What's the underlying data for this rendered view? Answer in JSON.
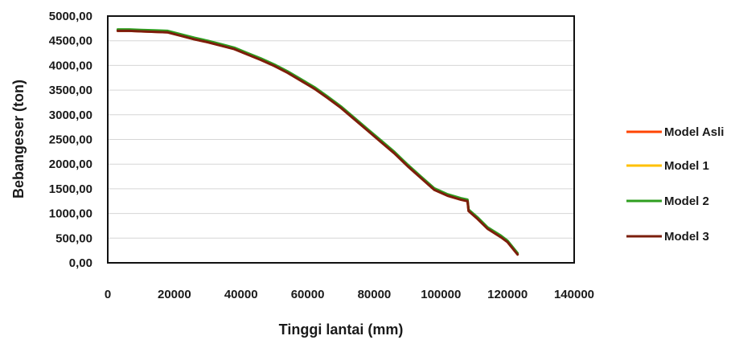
{
  "chart_data": {
    "type": "line",
    "title": "",
    "xlabel": "Tinggi lantai (mm)",
    "ylabel": "Bebangeser (ton)",
    "xlim": [
      0,
      140000
    ],
    "ylim": [
      0,
      5000
    ],
    "x_ticks": [
      "0",
      "20000",
      "40000",
      "60000",
      "80000",
      "100000",
      "120000",
      "140000"
    ],
    "y_ticks": [
      "0,00",
      "500,00",
      "1000,00",
      "1500,00",
      "2000,00",
      "2500,00",
      "3000,00",
      "3500,00",
      "4000,00",
      "4500,00",
      "5000,00"
    ],
    "grid": true,
    "legend_position": "right",
    "series": [
      {
        "name": "Model Asli",
        "color": "#ff4500",
        "points": [
          [
            3000,
            4700
          ],
          [
            6500,
            4700
          ],
          [
            10000,
            4690
          ],
          [
            14000,
            4680
          ],
          [
            18000,
            4670
          ],
          [
            22000,
            4600
          ],
          [
            26000,
            4530
          ],
          [
            30000,
            4470
          ],
          [
            34000,
            4400
          ],
          [
            38000,
            4330
          ],
          [
            42000,
            4220
          ],
          [
            46000,
            4110
          ],
          [
            50000,
            3990
          ],
          [
            54000,
            3850
          ],
          [
            58000,
            3690
          ],
          [
            62000,
            3530
          ],
          [
            66000,
            3340
          ],
          [
            70000,
            3140
          ],
          [
            74000,
            2910
          ],
          [
            78000,
            2680
          ],
          [
            82000,
            2450
          ],
          [
            86000,
            2220
          ],
          [
            90000,
            1960
          ],
          [
            94000,
            1720
          ],
          [
            98000,
            1480
          ],
          [
            102000,
            1360
          ],
          [
            106000,
            1280
          ],
          [
            108000,
            1250
          ],
          [
            108300,
            1050
          ],
          [
            111000,
            890
          ],
          [
            114000,
            690
          ],
          [
            118000,
            520
          ],
          [
            120000,
            420
          ],
          [
            123000,
            170
          ]
        ]
      },
      {
        "name": "Model 1",
        "color": "#ffc000",
        "points": [
          [
            3000,
            4710
          ],
          [
            6500,
            4710
          ],
          [
            10000,
            4700
          ],
          [
            14000,
            4690
          ],
          [
            18000,
            4680
          ],
          [
            22000,
            4610
          ],
          [
            26000,
            4540
          ],
          [
            30000,
            4480
          ],
          [
            34000,
            4410
          ],
          [
            38000,
            4340
          ],
          [
            42000,
            4230
          ],
          [
            46000,
            4120
          ],
          [
            50000,
            4000
          ],
          [
            54000,
            3860
          ],
          [
            58000,
            3700
          ],
          [
            62000,
            3540
          ],
          [
            66000,
            3350
          ],
          [
            70000,
            3150
          ],
          [
            74000,
            2920
          ],
          [
            78000,
            2690
          ],
          [
            82000,
            2460
          ],
          [
            86000,
            2230
          ],
          [
            90000,
            1970
          ],
          [
            94000,
            1730
          ],
          [
            98000,
            1490
          ],
          [
            102000,
            1370
          ],
          [
            106000,
            1290
          ],
          [
            108000,
            1260
          ],
          [
            108300,
            1060
          ],
          [
            111000,
            900
          ],
          [
            114000,
            700
          ],
          [
            118000,
            530
          ],
          [
            120000,
            430
          ],
          [
            123000,
            180
          ]
        ]
      },
      {
        "name": "Model 2",
        "color": "#2e9e1f",
        "points": [
          [
            3000,
            4730
          ],
          [
            6500,
            4730
          ],
          [
            10000,
            4720
          ],
          [
            14000,
            4710
          ],
          [
            18000,
            4700
          ],
          [
            22000,
            4630
          ],
          [
            26000,
            4560
          ],
          [
            30000,
            4500
          ],
          [
            34000,
            4430
          ],
          [
            38000,
            4360
          ],
          [
            42000,
            4250
          ],
          [
            46000,
            4140
          ],
          [
            50000,
            4020
          ],
          [
            54000,
            3880
          ],
          [
            58000,
            3720
          ],
          [
            62000,
            3560
          ],
          [
            66000,
            3370
          ],
          [
            70000,
            3170
          ],
          [
            74000,
            2940
          ],
          [
            78000,
            2710
          ],
          [
            82000,
            2480
          ],
          [
            86000,
            2250
          ],
          [
            90000,
            1990
          ],
          [
            94000,
            1750
          ],
          [
            98000,
            1510
          ],
          [
            102000,
            1390
          ],
          [
            106000,
            1310
          ],
          [
            108000,
            1280
          ],
          [
            108300,
            1080
          ],
          [
            111000,
            920
          ],
          [
            114000,
            720
          ],
          [
            118000,
            550
          ],
          [
            120000,
            450
          ],
          [
            123000,
            195
          ]
        ]
      },
      {
        "name": "Model 3",
        "color": "#7b1e0c",
        "points": [
          [
            3000,
            4700
          ],
          [
            6500,
            4700
          ],
          [
            10000,
            4690
          ],
          [
            14000,
            4680
          ],
          [
            18000,
            4670
          ],
          [
            22000,
            4600
          ],
          [
            26000,
            4530
          ],
          [
            30000,
            4470
          ],
          [
            34000,
            4400
          ],
          [
            38000,
            4330
          ],
          [
            42000,
            4220
          ],
          [
            46000,
            4110
          ],
          [
            50000,
            3990
          ],
          [
            54000,
            3850
          ],
          [
            58000,
            3690
          ],
          [
            62000,
            3530
          ],
          [
            66000,
            3340
          ],
          [
            70000,
            3140
          ],
          [
            74000,
            2910
          ],
          [
            78000,
            2680
          ],
          [
            82000,
            2450
          ],
          [
            86000,
            2220
          ],
          [
            90000,
            1960
          ],
          [
            94000,
            1720
          ],
          [
            98000,
            1480
          ],
          [
            102000,
            1360
          ],
          [
            106000,
            1280
          ],
          [
            108000,
            1250
          ],
          [
            108300,
            1050
          ],
          [
            111000,
            890
          ],
          [
            114000,
            690
          ],
          [
            118000,
            520
          ],
          [
            120000,
            420
          ],
          [
            123000,
            170
          ]
        ]
      }
    ]
  }
}
